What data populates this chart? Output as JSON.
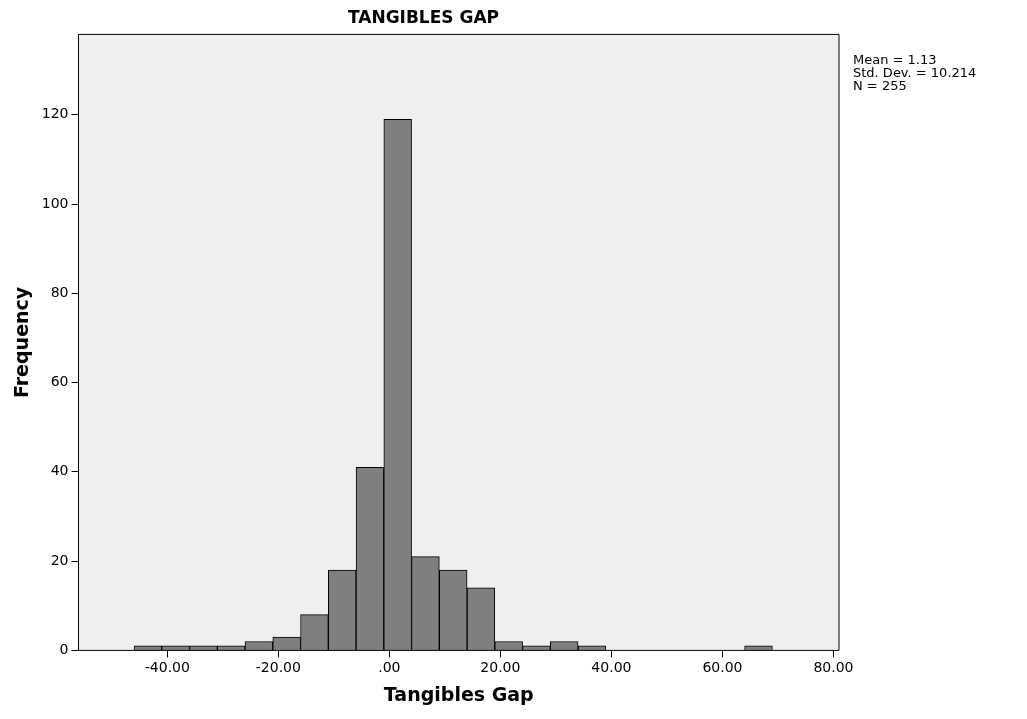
{
  "chart_data": {
    "type": "histogram",
    "title": "TANGIBLES GAP",
    "xlabel": "Tangibles Gap",
    "ylabel": "Frequency",
    "bins": [
      -46,
      -41,
      -36,
      -31,
      -26,
      -21,
      -16,
      -11,
      -6,
      -1,
      4,
      9,
      14,
      19,
      24,
      29,
      34,
      39,
      44,
      49,
      54,
      59,
      64,
      69
    ],
    "values": [
      1,
      1,
      1,
      1,
      2,
      3,
      8,
      18,
      41,
      119,
      21,
      18,
      14,
      2,
      1,
      2,
      1,
      0,
      0,
      0,
      0,
      0,
      1
    ],
    "color": "#7f7f7f",
    "xlim": [
      -56,
      81
    ],
    "xticks": [
      {
        "value": -40,
        "label": "-40.00"
      },
      {
        "value": -20,
        "label": "-20.00"
      },
      {
        "value": 0,
        "label": ".00"
      },
      {
        "value": 20,
        "label": "20.00"
      },
      {
        "value": 40,
        "label": "40.00"
      },
      {
        "value": 60,
        "label": "60.00"
      },
      {
        "value": 80,
        "label": "80.00"
      }
    ],
    "ylim": [
      0,
      138
    ],
    "yticks": [
      0,
      20,
      40,
      60,
      80,
      100,
      120
    ],
    "grid": false,
    "legend": false,
    "annotations": [
      "Mean = 1.13",
      "Std. Dev. = 10.214",
      "N = 255"
    ]
  }
}
